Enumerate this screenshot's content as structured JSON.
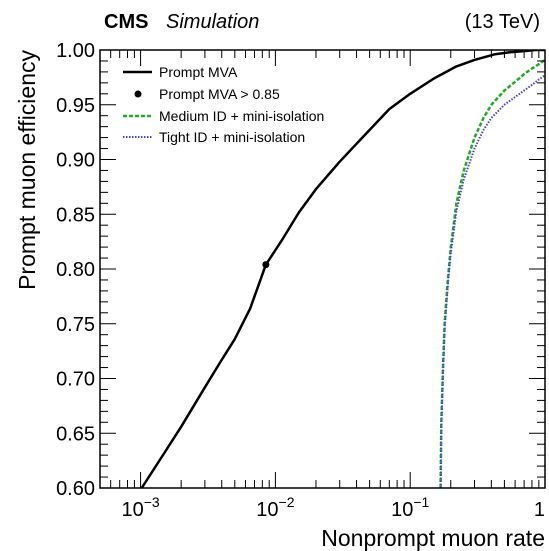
{
  "header": {
    "experiment": "CMS",
    "status": "Simulation",
    "energy": "(13 TeV)"
  },
  "chart_data": {
    "type": "line",
    "xlabel": "Nonprompt muon rate",
    "ylabel": "Prompt muon efficiency",
    "xscale": "log",
    "xlim": [
      0.0005,
      1
    ],
    "ylim": [
      0.6,
      1.0
    ],
    "grid": false,
    "legend_position": "top-left",
    "y_ticks": [
      "0.60",
      "0.65",
      "0.70",
      "0.75",
      "0.80",
      "0.85",
      "0.90",
      "0.95",
      "1.00"
    ],
    "x_ticks": [
      {
        "base": "10",
        "exp": "−3"
      },
      {
        "base": "10",
        "exp": "−2"
      },
      {
        "base": "10",
        "exp": "−1"
      },
      {
        "base": "1",
        "exp": ""
      }
    ],
    "colors": {
      "prompt_mva": "#000000",
      "medium": "#22aa22",
      "tight": "#4444cc"
    },
    "series": [
      {
        "name": "Prompt MVA",
        "style": "solid",
        "x": [
          0.00102,
          0.0015,
          0.002,
          0.003,
          0.004,
          0.005,
          0.0065,
          0.0085,
          0.011,
          0.015,
          0.02,
          0.03,
          0.045,
          0.07,
          0.1,
          0.15,
          0.22,
          0.3,
          0.42,
          0.55,
          0.7,
          0.85,
          1.0
        ],
        "y": [
          0.6,
          0.632,
          0.656,
          0.692,
          0.717,
          0.736,
          0.764,
          0.804,
          0.825,
          0.852,
          0.873,
          0.898,
          0.921,
          0.946,
          0.96,
          0.974,
          0.985,
          0.991,
          0.996,
          0.998,
          0.999,
          1.0,
          1.0
        ]
      },
      {
        "name": "Prompt MVA > 0.85",
        "style": "marker",
        "x": [
          0.0085
        ],
        "y": [
          0.804
        ]
      },
      {
        "name": "Medium ID + mini-isolation",
        "style": "dashed",
        "x": [
          0.168,
          0.17,
          0.175,
          0.18,
          0.19,
          0.2,
          0.22,
          0.25,
          0.3,
          0.35,
          0.4,
          0.5,
          0.6,
          0.7,
          0.8,
          0.9,
          1.0
        ],
        "y": [
          0.6,
          0.66,
          0.71,
          0.75,
          0.79,
          0.82,
          0.86,
          0.89,
          0.92,
          0.938,
          0.95,
          0.963,
          0.971,
          0.978,
          0.983,
          0.987,
          0.991
        ]
      },
      {
        "name": "Tight ID + mini-isolation",
        "style": "dotted",
        "x": [
          0.168,
          0.17,
          0.175,
          0.18,
          0.19,
          0.2,
          0.22,
          0.25,
          0.3,
          0.35,
          0.4,
          0.5,
          0.6,
          0.7,
          0.8,
          0.9,
          1.0
        ],
        "y": [
          0.6,
          0.655,
          0.705,
          0.745,
          0.785,
          0.815,
          0.853,
          0.882,
          0.91,
          0.927,
          0.938,
          0.95,
          0.957,
          0.963,
          0.968,
          0.973,
          0.977
        ]
      }
    ]
  }
}
